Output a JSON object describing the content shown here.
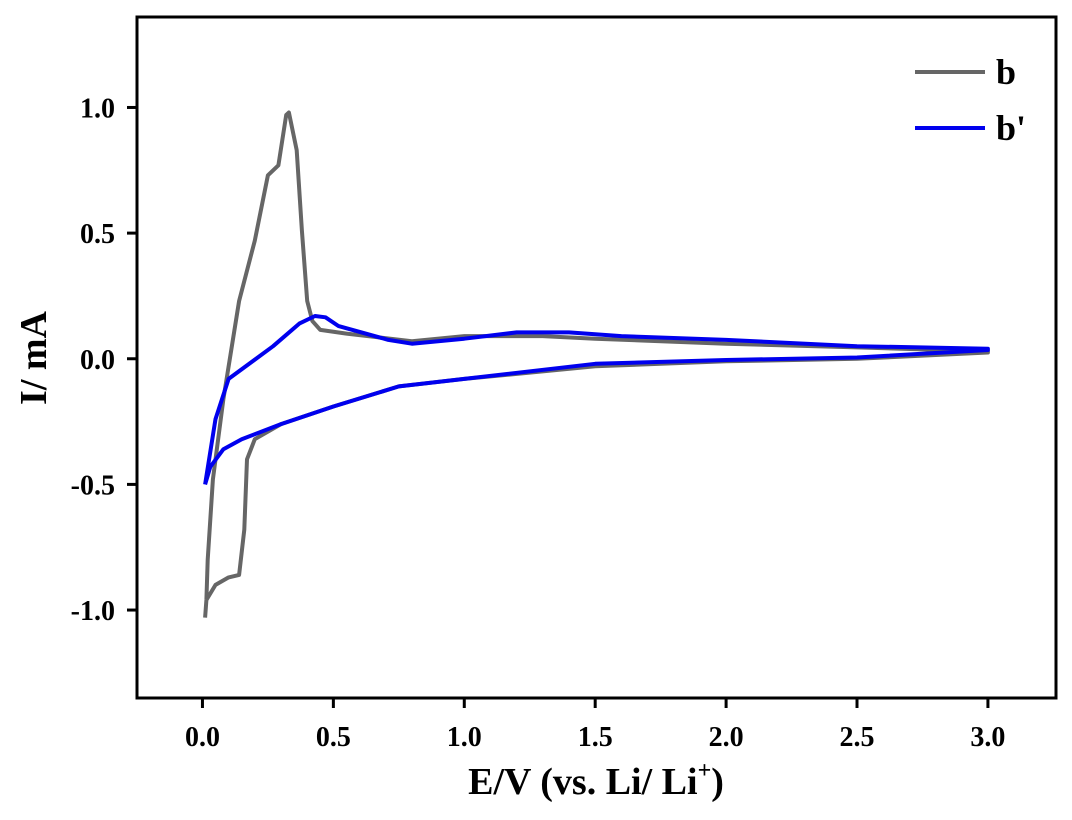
{
  "chart_data": {
    "type": "line",
    "title": "",
    "xlabel": "E/V (vs. Li/ Li",
    "xlabel_superscript": "+",
    "xlabel_suffix": ")",
    "ylabel": "I/ mA",
    "xlim": [
      -0.25,
      3.26
    ],
    "ylim": [
      -1.35,
      1.36
    ],
    "xticks": [
      "0.0",
      "0.5",
      "1.0",
      "1.5",
      "2.0",
      "2.5",
      "3.0"
    ],
    "xtick_values": [
      0,
      0.5,
      1.0,
      1.5,
      2.0,
      2.5,
      3.0
    ],
    "yticks": [
      "-1.0",
      "-0.5",
      "0.0",
      "0.5",
      "1.0"
    ],
    "ytick_values": [
      -1.0,
      -0.5,
      0,
      0.5,
      1.0
    ],
    "grid": false,
    "legend_position": "top-right",
    "series": [
      {
        "name": "b",
        "color": "#666666",
        "points": [
          [
            0.01,
            -1.03
          ],
          [
            0.015,
            -0.96
          ],
          [
            0.02,
            -0.8
          ],
          [
            0.04,
            -0.48
          ],
          [
            0.08,
            -0.16
          ],
          [
            0.14,
            0.23
          ],
          [
            0.2,
            0.47
          ],
          [
            0.25,
            0.73
          ],
          [
            0.29,
            0.77
          ],
          [
            0.32,
            0.97
          ],
          [
            0.33,
            0.98
          ],
          [
            0.36,
            0.83
          ],
          [
            0.38,
            0.51
          ],
          [
            0.4,
            0.23
          ],
          [
            0.42,
            0.15
          ],
          [
            0.45,
            0.115
          ],
          [
            0.55,
            0.1
          ],
          [
            0.8,
            0.07
          ],
          [
            1.0,
            0.09
          ],
          [
            1.3,
            0.09
          ],
          [
            1.5,
            0.08
          ],
          [
            2.0,
            0.06
          ],
          [
            2.5,
            0.045
          ],
          [
            3.0,
            0.03
          ],
          [
            3.0,
            0.025
          ],
          [
            2.5,
            0.0
          ],
          [
            2.0,
            -0.01
          ],
          [
            1.5,
            -0.03
          ],
          [
            1.0,
            -0.08
          ],
          [
            0.75,
            -0.11
          ],
          [
            0.5,
            -0.19
          ],
          [
            0.3,
            -0.26
          ],
          [
            0.2,
            -0.32
          ],
          [
            0.17,
            -0.4
          ],
          [
            0.16,
            -0.68
          ],
          [
            0.14,
            -0.86
          ],
          [
            0.1,
            -0.87
          ],
          [
            0.05,
            -0.9
          ],
          [
            0.015,
            -0.96
          ],
          [
            0.01,
            -1.03
          ]
        ]
      },
      {
        "name": "b'",
        "color": "#0000ee",
        "points": [
          [
            0.01,
            -0.5
          ],
          [
            0.05,
            -0.24
          ],
          [
            0.1,
            -0.08
          ],
          [
            0.27,
            0.05
          ],
          [
            0.37,
            0.14
          ],
          [
            0.43,
            0.17
          ],
          [
            0.47,
            0.165
          ],
          [
            0.52,
            0.13
          ],
          [
            0.71,
            0.075
          ],
          [
            0.8,
            0.06
          ],
          [
            1.0,
            0.08
          ],
          [
            1.2,
            0.105
          ],
          [
            1.4,
            0.105
          ],
          [
            1.6,
            0.09
          ],
          [
            2.0,
            0.075
          ],
          [
            2.5,
            0.05
          ],
          [
            3.0,
            0.04
          ],
          [
            3.0,
            0.035
          ],
          [
            2.5,
            0.005
          ],
          [
            2.0,
            -0.005
          ],
          [
            1.5,
            -0.02
          ],
          [
            1.0,
            -0.08
          ],
          [
            0.75,
            -0.11
          ],
          [
            0.5,
            -0.19
          ],
          [
            0.3,
            -0.26
          ],
          [
            0.15,
            -0.32
          ],
          [
            0.08,
            -0.36
          ],
          [
            0.03,
            -0.43
          ],
          [
            0.01,
            -0.5
          ]
        ]
      }
    ]
  }
}
